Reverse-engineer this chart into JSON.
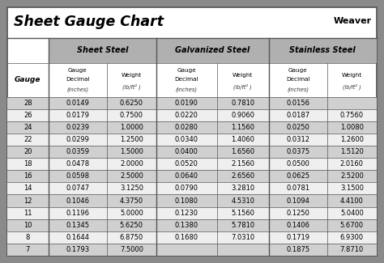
{
  "title": "Sheet Gauge Chart",
  "bg_outer": "#8a8a8a",
  "bg_white": "#ffffff",
  "bg_title": "#ffffff",
  "bg_header_dark": "#b0b0b0",
  "bg_row_dark": "#d0d0d0",
  "bg_row_light": "#efefef",
  "border_dark": "#555555",
  "gauges": [
    28,
    26,
    24,
    22,
    20,
    18,
    16,
    14,
    12,
    11,
    10,
    8,
    7
  ],
  "sheet_steel_label": "Sheet Steel",
  "galv_steel_label": "Galvanized Steel",
  "sta_steel_label": "Stainless Steel",
  "sheet_steel_decimal": [
    "0.0149",
    "0.0179",
    "0.0239",
    "0.0299",
    "0.0359",
    "0.0478",
    "0.0598",
    "0.0747",
    "0.1046",
    "0.1196",
    "0.1345",
    "0.1644",
    "0.1793"
  ],
  "sheet_steel_weight": [
    "0.6250",
    "0.7500",
    "1.0000",
    "1.2500",
    "1.5000",
    "2.0000",
    "2.5000",
    "3.1250",
    "4.3750",
    "5.0000",
    "5.6250",
    "6.8750",
    "7.5000"
  ],
  "galv_decimal": [
    "0.0190",
    "0.0220",
    "0.0280",
    "0.0340",
    "0.0400",
    "0.0520",
    "0.0640",
    "0.0790",
    "0.1080",
    "0.1230",
    "0.1380",
    "0.1680",
    ""
  ],
  "galv_weight": [
    "0.7810",
    "0.9060",
    "1.1560",
    "1.4060",
    "1.6560",
    "2.1560",
    "2.6560",
    "3.2810",
    "4.5310",
    "5.1560",
    "5.7810",
    "7.0310",
    ""
  ],
  "sta_decimal": [
    "0.0156",
    "0.0187",
    "0.0250",
    "0.0312",
    "0.0375",
    "0.0500",
    "0.0625",
    "0.0781",
    "0.1094",
    "0.1250",
    "0.1406",
    "0.1719",
    "0.1875"
  ],
  "sta_weight": [
    "",
    "0.7560",
    "1.0080",
    "1.2600",
    "1.5120",
    "2.0160",
    "2.5200",
    "3.1500",
    "4.4100",
    "5.0400",
    "5.6700",
    "6.9300",
    "7.8710"
  ]
}
